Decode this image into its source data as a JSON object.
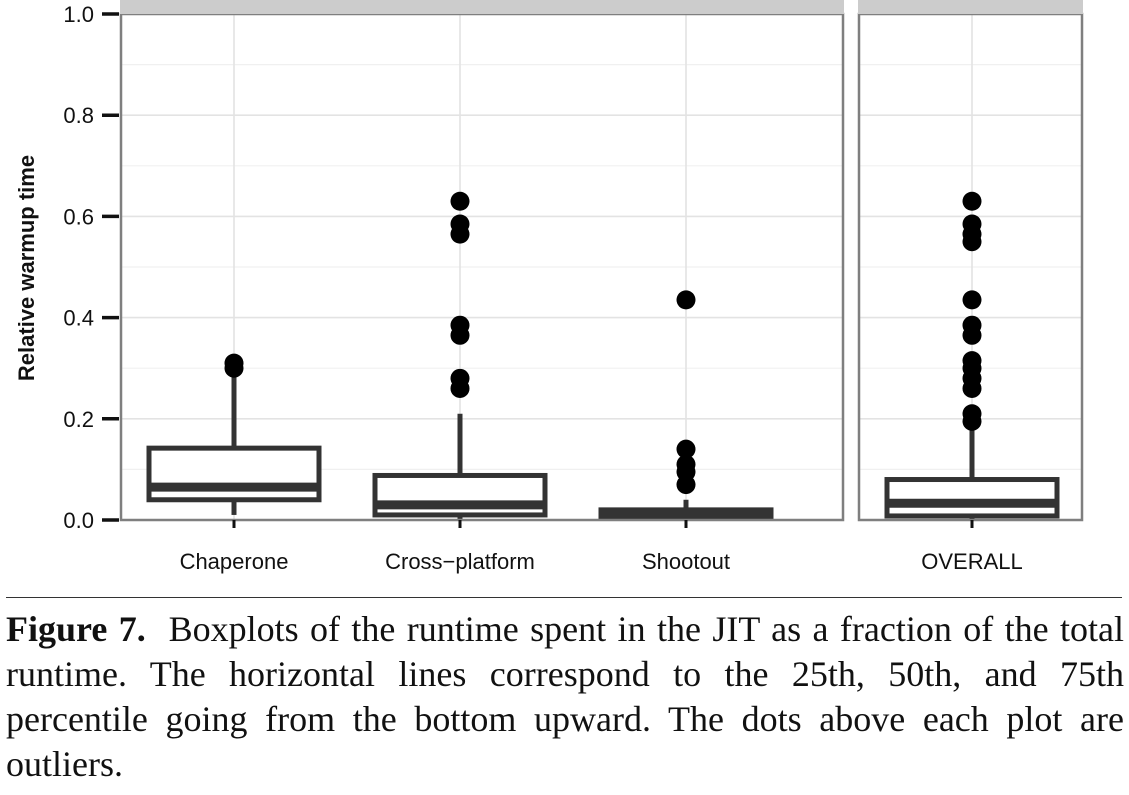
{
  "figure": {
    "caption_label": "Figure 7.",
    "caption_text": "Boxplots of the runtime spent in the JIT as a fraction of the total runtime. The horizontal lines correspond to the 25th, 50th, and 75th percentile going from the bottom upward. The dots above each plot are outliers."
  },
  "chart_data": {
    "type": "boxplot",
    "title": "",
    "xlabel": "",
    "ylabel": "Relative warmup time",
    "ylim": [
      0.0,
      1.0
    ],
    "yticks": [
      0.0,
      0.2,
      0.4,
      0.6,
      0.8,
      1.0
    ],
    "ytick_labels": [
      "0.0",
      "0.2",
      "0.4",
      "0.6",
      "0.8",
      "1.0"
    ],
    "grid": true,
    "theme": {
      "box_stroke": "#333333",
      "panel_border": "#7f7f7f",
      "grid_major": "#e3e3e3",
      "grid_minor": "#f0f0f0",
      "point_fill": "#000000"
    },
    "panels": [
      {
        "categories": [
          {
            "name": "Chaperone",
            "q1": 0.04,
            "median": 0.065,
            "q3": 0.142,
            "whisker_low": 0.01,
            "whisker_high": 0.3,
            "outliers": [
              0.3,
              0.31
            ]
          },
          {
            "name": "Cross−platform",
            "q1": 0.01,
            "median": 0.03,
            "q3": 0.088,
            "whisker_low": 0.0,
            "whisker_high": 0.21,
            "outliers": [
              0.26,
              0.28,
              0.365,
              0.385,
              0.565,
              0.585,
              0.63
            ]
          },
          {
            "name": "Shootout",
            "q1": 0.005,
            "median": 0.01,
            "q3": 0.02,
            "whisker_low": 0.0,
            "whisker_high": 0.04,
            "outliers": [
              0.07,
              0.095,
              0.11,
              0.14,
              0.435
            ]
          }
        ]
      },
      {
        "categories": [
          {
            "name": "OVERALL",
            "q1": 0.008,
            "median": 0.033,
            "q3": 0.08,
            "whisker_low": 0.0,
            "whisker_high": 0.18,
            "outliers": [
              0.195,
              0.21,
              0.26,
              0.28,
              0.3,
              0.315,
              0.365,
              0.385,
              0.435,
              0.55,
              0.565,
              0.585,
              0.63
            ]
          }
        ]
      }
    ]
  }
}
